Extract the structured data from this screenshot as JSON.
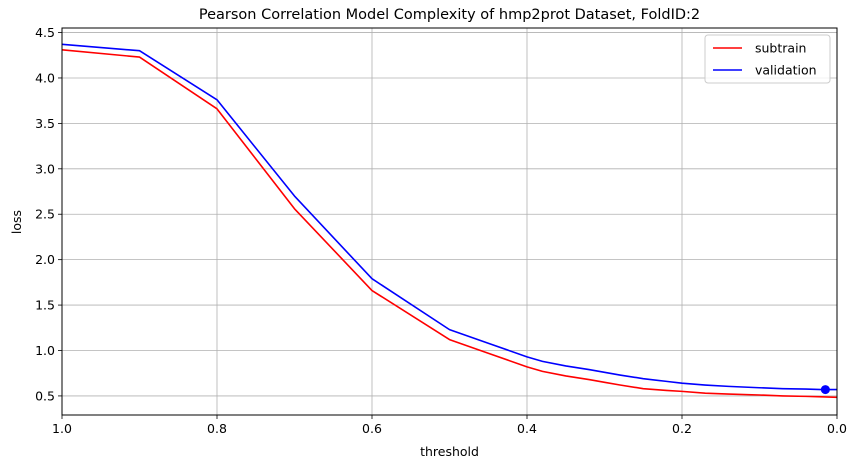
{
  "chart_data": {
    "type": "line",
    "title": "Pearson Correlation Model Complexity of hmp2prot Dataset, FoldID:2",
    "xlabel": "threshold",
    "ylabel": "loss",
    "xlim": [
      1.0,
      0.0
    ],
    "ylim": [
      0.29,
      4.55
    ],
    "x_inverted": true,
    "grid": true,
    "legend_position": "top-right",
    "xticks": [
      1.0,
      0.8,
      0.6,
      0.4,
      0.2,
      0.0
    ],
    "xtick_labels": [
      "1.0",
      "0.8",
      "0.6",
      "0.4",
      "0.2",
      "0.0"
    ],
    "yticks": [
      0.5,
      1.0,
      1.5,
      2.0,
      2.5,
      3.0,
      3.5,
      4.0,
      4.5
    ],
    "ytick_labels": [
      "0.5",
      "1.0",
      "1.5",
      "2.0",
      "2.5",
      "3.0",
      "3.5",
      "4.0",
      "4.5"
    ],
    "series": [
      {
        "name": "subtrain",
        "color": "#ff0000",
        "x": [
          1.0,
          0.9,
          0.8,
          0.7,
          0.6,
          0.5,
          0.45,
          0.4,
          0.38,
          0.35,
          0.32,
          0.3,
          0.28,
          0.25,
          0.22,
          0.2,
          0.17,
          0.14,
          0.1,
          0.07,
          0.04,
          0.02,
          0.0
        ],
        "y": [
          4.31,
          4.23,
          3.66,
          2.56,
          1.66,
          1.12,
          0.97,
          0.82,
          0.77,
          0.72,
          0.68,
          0.65,
          0.62,
          0.58,
          0.56,
          0.55,
          0.53,
          0.52,
          0.51,
          0.5,
          0.495,
          0.49,
          0.485
        ]
      },
      {
        "name": "validation",
        "color": "#0000ff",
        "x": [
          1.0,
          0.9,
          0.8,
          0.7,
          0.6,
          0.5,
          0.45,
          0.4,
          0.38,
          0.35,
          0.32,
          0.3,
          0.28,
          0.25,
          0.22,
          0.2,
          0.17,
          0.14,
          0.1,
          0.07,
          0.04,
          0.02,
          0.0
        ],
        "y": [
          4.37,
          4.3,
          3.76,
          2.7,
          1.79,
          1.23,
          1.08,
          0.93,
          0.88,
          0.83,
          0.79,
          0.76,
          0.73,
          0.69,
          0.66,
          0.64,
          0.62,
          0.605,
          0.59,
          0.58,
          0.575,
          0.57,
          0.57
        ]
      }
    ],
    "marker": {
      "series": "validation",
      "x": 0.015,
      "y": 0.57,
      "color": "#0000ff"
    }
  }
}
